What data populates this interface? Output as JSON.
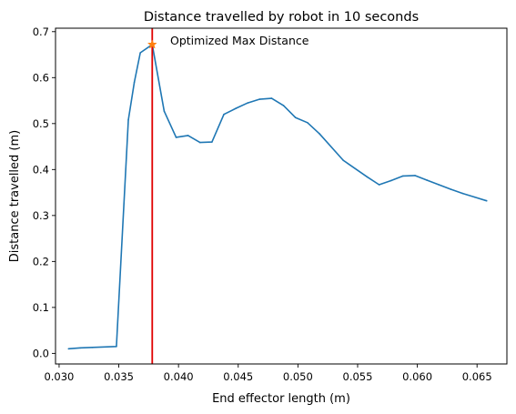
{
  "chart_data": {
    "type": "line",
    "title": "Distance travelled by robot in 10 seconds",
    "xlabel": "End effector length (m)",
    "ylabel": "Distance travelled (m)",
    "xlim": [
      0.0297,
      0.0675
    ],
    "ylim": [
      -0.023,
      0.7075
    ],
    "xticks": [
      "0.030",
      "0.035",
      "0.040",
      "0.045",
      "0.050",
      "0.055",
      "0.060",
      "0.065"
    ],
    "xtick_values": [
      0.03,
      0.035,
      0.04,
      0.045,
      0.05,
      0.055,
      0.06,
      0.065
    ],
    "yticks": [
      "0.0",
      "0.1",
      "0.2",
      "0.3",
      "0.4",
      "0.5",
      "0.6",
      "0.7"
    ],
    "ytick_values": [
      0.0,
      0.1,
      0.2,
      0.3,
      0.4,
      0.5,
      0.6,
      0.7
    ],
    "grid": false,
    "series": [
      {
        "color": "#1f77b4",
        "x": [
          0.0308,
          0.0318,
          0.0328,
          0.0348,
          0.0358,
          0.0363,
          0.0368,
          0.0378,
          0.0388,
          0.0398,
          0.0408,
          0.0418,
          0.0428,
          0.0438,
          0.0448,
          0.0458,
          0.0468,
          0.0478,
          0.0488,
          0.0498,
          0.0508,
          0.0518,
          0.0538,
          0.0558,
          0.0568,
          0.0578,
          0.0588,
          0.0598,
          0.0608,
          0.0618,
          0.0628,
          0.0638,
          0.0648,
          0.0658
        ],
        "y": [
          0.01,
          0.012,
          0.013,
          0.015,
          0.508,
          0.59,
          0.654,
          0.672,
          0.527,
          0.47,
          0.474,
          0.459,
          0.46,
          0.52,
          0.533,
          0.545,
          0.553,
          0.555,
          0.539,
          0.513,
          0.502,
          0.478,
          0.42,
          0.384,
          0.367,
          0.376,
          0.386,
          0.387,
          0.377,
          0.367,
          0.357,
          0.348,
          0.34,
          0.332
        ]
      }
    ],
    "vline": {
      "x": 0.0378,
      "color": "#e00000"
    },
    "marker": {
      "x": 0.0378,
      "y": 0.672,
      "color": "#ff7f0e"
    },
    "annotations": [
      {
        "text": "Optimized Max Distance",
        "x": 0.0378,
        "y": 0.672
      }
    ]
  }
}
